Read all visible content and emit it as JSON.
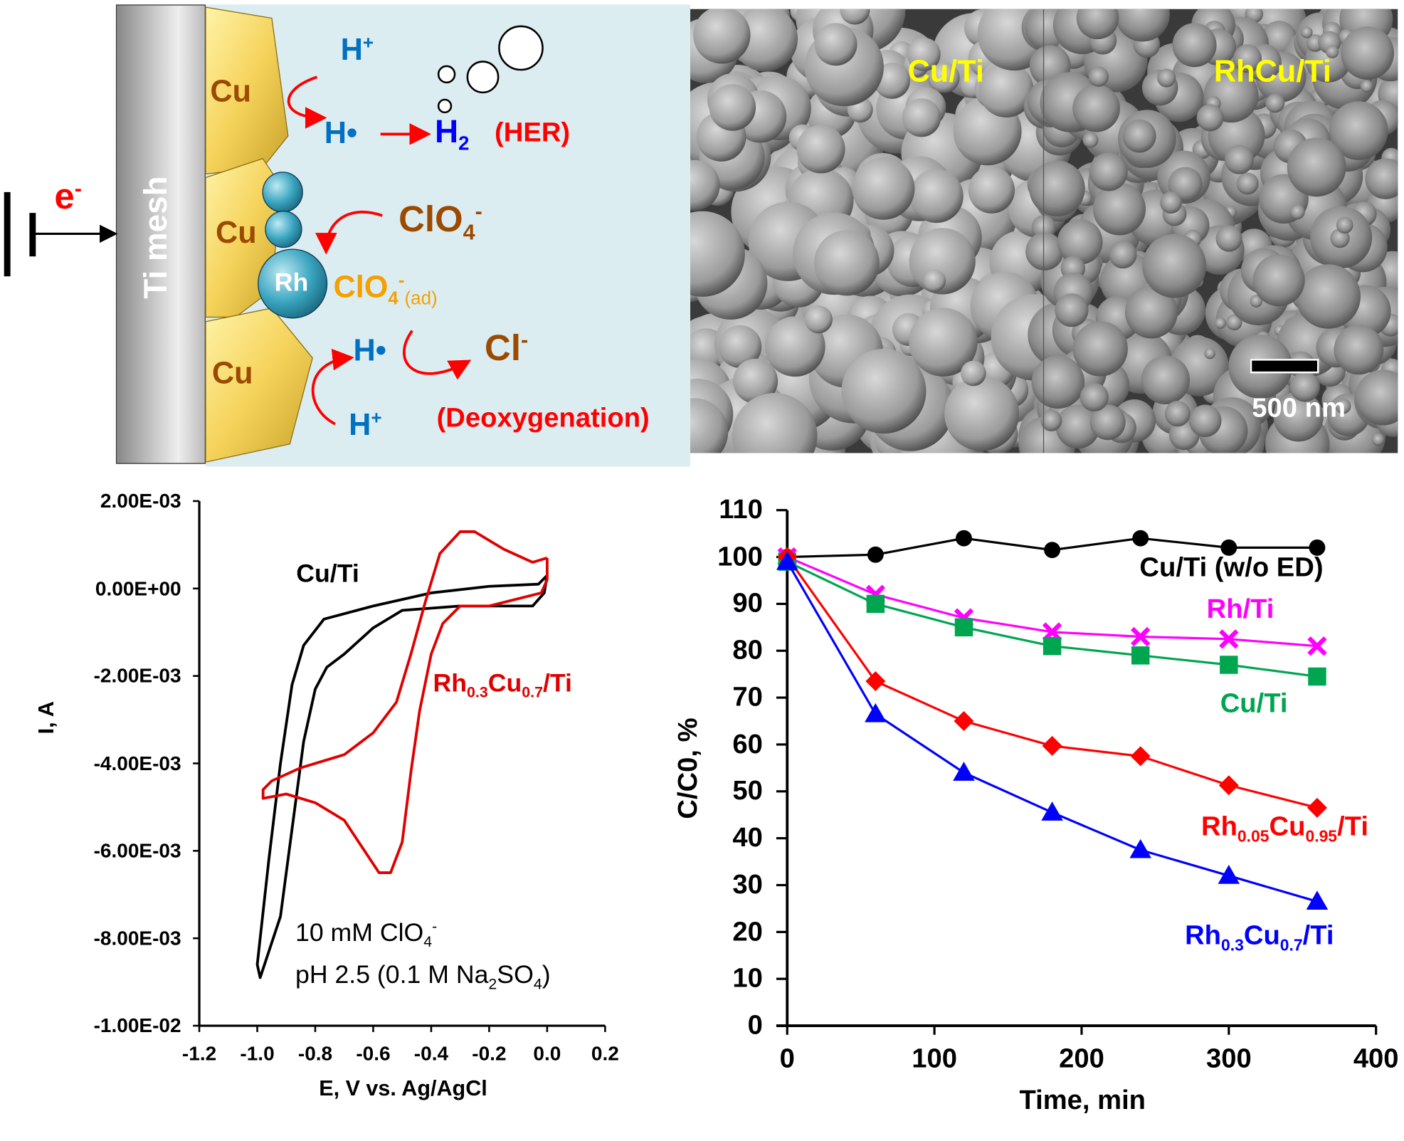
{
  "diagram": {
    "electrode": "Ti mesh",
    "electron": "e",
    "electron_sup": "-",
    "cu_labels": [
      "Cu",
      "Cu",
      "Cu"
    ],
    "rh_label": "Rh",
    "h_plus": "H",
    "plus": "+",
    "h_dot": "H•",
    "h2": "H",
    "h2_sub": "2",
    "her": "(HER)",
    "clo4": "ClO",
    "clo4_sub": "4",
    "minus": "-",
    "clo4_ad_sub": "4",
    "ad": "(ad)",
    "cl": "Cl",
    "deox": "(Deoxygenation)",
    "colors": {
      "background": "#dcedf2",
      "cu": "#f5d35a",
      "rh": "#3aa5c0",
      "arrow": "#ff0000",
      "h": "#0070c0",
      "h2": "#0000ff",
      "clo4": "#9c4a00",
      "clo4_ad": "#f5a000"
    }
  },
  "sem": {
    "left_label": "Cu/Ti",
    "right_label": "RhCu/Ti",
    "scale_bar": "500 nm",
    "label_color": "#ffff00"
  },
  "chart_data": [
    {
      "type": "line",
      "xlabel": "E, V vs. Ag/AgCl",
      "ylabel": "I, A",
      "xlim": [
        -1.2,
        0.2
      ],
      "ylim": [
        -0.01,
        0.002
      ],
      "xticks": [
        "-1.2",
        "-1.0",
        "-0.8",
        "-0.6",
        "-0.4",
        "-0.2",
        "0.0",
        "0.2"
      ],
      "yticks": [
        "2.00E-03",
        "0.00E+00",
        "-2.00E-03",
        "-4.00E-03",
        "-6.00E-03",
        "-8.00E-03",
        "-1.00E-02"
      ],
      "grid": false,
      "annotation_line1": "10 mM ClO",
      "annotation_line1_sub": "4",
      "annotation_line1_sup": "-",
      "annotation_line2_a": "pH 2.5 (0.1 M Na",
      "annotation_line2_sub1": "2",
      "annotation_line2_b": "SO",
      "annotation_line2_sub2": "4",
      "annotation_line2_c": ")",
      "series": [
        {
          "name": "Cu/Ti",
          "label_parts": [
            "Cu/Ti"
          ],
          "color": "#000000",
          "points": [
            [
              0,
              0.0003
            ],
            [
              -0.01,
              -0.0001
            ],
            [
              -0.05,
              -0.0004
            ],
            [
              -0.3,
              -0.0004
            ],
            [
              -0.5,
              -0.0005
            ],
            [
              -0.6,
              -0.0009
            ],
            [
              -0.7,
              -0.0015
            ],
            [
              -0.76,
              -0.0018
            ],
            [
              -0.8,
              -0.0023
            ],
            [
              -0.84,
              -0.0035
            ],
            [
              -0.88,
              -0.0055
            ],
            [
              -0.92,
              -0.0075
            ],
            [
              -0.99,
              -0.0089
            ],
            [
              -1.0,
              -0.0086
            ],
            [
              -0.96,
              -0.0062
            ],
            [
              -0.92,
              -0.004
            ],
            [
              -0.88,
              -0.0022
            ],
            [
              -0.84,
              -0.0013
            ],
            [
              -0.77,
              -0.0007
            ],
            [
              -0.6,
              -0.0004
            ],
            [
              -0.4,
              -0.0001
            ],
            [
              -0.2,
              5e-05
            ],
            [
              -0.03,
              0.0001
            ],
            [
              0,
              0.0003
            ]
          ]
        },
        {
          "name": "Rh0.3Cu0.7/Ti",
          "label_parts": [
            "Rh",
            "0.3",
            "Cu",
            "0.7",
            "/Ti"
          ],
          "color": "#e00000",
          "points": [
            [
              0,
              0.0007
            ],
            [
              0,
              0.0002
            ],
            [
              -0.02,
              -0.0001
            ],
            [
              -0.2,
              -0.0004
            ],
            [
              -0.3,
              -0.0004
            ],
            [
              -0.36,
              -0.0008
            ],
            [
              -0.4,
              -0.0015
            ],
            [
              -0.44,
              -0.0028
            ],
            [
              -0.47,
              -0.0042
            ],
            [
              -0.5,
              -0.0058
            ],
            [
              -0.54,
              -0.0065
            ],
            [
              -0.58,
              -0.0065
            ],
            [
              -0.63,
              -0.006
            ],
            [
              -0.7,
              -0.0053
            ],
            [
              -0.8,
              -0.0049
            ],
            [
              -0.9,
              -0.0047
            ],
            [
              -0.98,
              -0.0048
            ],
            [
              -0.98,
              -0.0046
            ],
            [
              -0.95,
              -0.0044
            ],
            [
              -0.85,
              -0.0041
            ],
            [
              -0.75,
              -0.0039
            ],
            [
              -0.7,
              -0.0038
            ],
            [
              -0.6,
              -0.0033
            ],
            [
              -0.52,
              -0.0026
            ],
            [
              -0.47,
              -0.0015
            ],
            [
              -0.42,
              -0.0003
            ],
            [
              -0.37,
              0.0008
            ],
            [
              -0.3,
              0.0013
            ],
            [
              -0.25,
              0.0013
            ],
            [
              -0.15,
              0.0009
            ],
            [
              -0.05,
              0.0006
            ],
            [
              0,
              0.0007
            ]
          ]
        }
      ]
    },
    {
      "type": "line",
      "xlabel": "Time, min",
      "ylabel": "C/C0, %",
      "xlim": [
        0,
        400
      ],
      "ylim": [
        0,
        110
      ],
      "xticks": [
        "0",
        "100",
        "200",
        "300",
        "400"
      ],
      "yticks": [
        "110",
        "100",
        "90",
        "80",
        "70",
        "60",
        "50",
        "40",
        "30",
        "20",
        "10",
        "0"
      ],
      "grid": false,
      "x": [
        0,
        60,
        120,
        180,
        240,
        300,
        360
      ],
      "series": [
        {
          "name": "Cu/Ti (w/o ED)",
          "label_parts": [
            "Cu/Ti (w/o ED)"
          ],
          "color": "#000000",
          "marker": "circle",
          "values": [
            100,
            100.5,
            104,
            101.5,
            104,
            102,
            102
          ]
        },
        {
          "name": "Rh/Ti",
          "label_parts": [
            "Rh/Ti"
          ],
          "color": "#ff00ff",
          "marker": "x",
          "values": [
            100,
            92,
            87,
            84,
            83,
            82.5,
            81
          ]
        },
        {
          "name": "Cu/Ti",
          "label_parts": [
            "Cu/Ti"
          ],
          "color": "#00a550",
          "marker": "square",
          "values": [
            99,
            90,
            85,
            81,
            79,
            77,
            74.5
          ]
        },
        {
          "name": "Rh0.05Cu0.95/Ti",
          "label_parts": [
            "Rh",
            "0.05",
            "Cu",
            "0.95",
            "/Ti"
          ],
          "color": "#ff0000",
          "marker": "diamond",
          "values": [
            100,
            73.5,
            65,
            59.7,
            57.5,
            51.3,
            46.5
          ]
        },
        {
          "name": "Rh0.3Cu0.7/Ti",
          "label_parts": [
            "Rh",
            "0.3",
            "Cu",
            "0.7",
            "/Ti"
          ],
          "color": "#0000ff",
          "marker": "triangle",
          "values": [
            99,
            66.5,
            54,
            45.5,
            37.5,
            32,
            26.5
          ]
        }
      ]
    }
  ]
}
